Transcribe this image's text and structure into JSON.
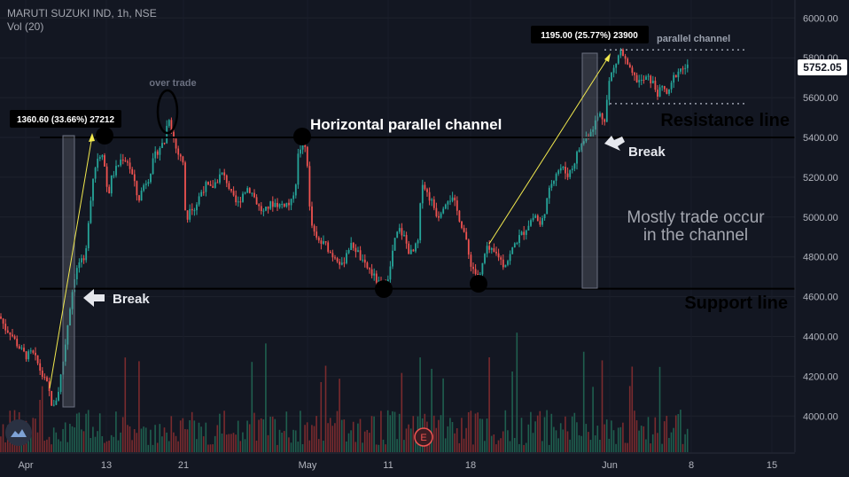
{
  "legend": {
    "symbol_line": "MARUTI SUZUKI IND, 1h, NSE",
    "volume_line": "Vol (20)"
  },
  "price_axis": {
    "ticks": [
      "6000.00",
      "5800.00",
      "5600.00",
      "5400.00",
      "5200.00",
      "5000.00",
      "4800.00",
      "4600.00",
      "4400.00",
      "4200.00",
      "4000.00"
    ],
    "current_price": "5752.05"
  },
  "time_axis": {
    "ticks": [
      "Apr",
      "13",
      "21",
      "May",
      "11",
      "18",
      "Jun",
      "8",
      "15"
    ]
  },
  "annotations": {
    "measure_1": "1360.60 (33.66%) 27212",
    "measure_2": "1195.00 (25.77%) 23900",
    "over_trade": "over trade",
    "horizontal_channel": "Horizontal parallel channel",
    "parallel_channel": "parallel channel",
    "resistance": "Resistance line",
    "support": "Support line",
    "break_1": "Break",
    "break_2": "Break",
    "mostly_line1": "Mostly trade occur",
    "mostly_line2": "in the channel",
    "earnings_marker": "E"
  },
  "colors": {
    "background": "#131722",
    "up": "#26a69a",
    "down": "#ef5350",
    "vol_up": "#1f5f4f",
    "vol_down": "#7a2b2e",
    "trend_arrow": "#f2e94e"
  },
  "chart_data": {
    "type": "candlestick",
    "title": "",
    "ylim": [
      3860,
      6080
    ],
    "support": 4640,
    "resistance": 5400,
    "channel_top": 5840,
    "channel_bottom": 5570,
    "path": [
      [
        0,
        4500
      ],
      [
        6,
        4440
      ],
      [
        12,
        4420
      ],
      [
        18,
        4370
      ],
      [
        24,
        4330
      ],
      [
        30,
        4300
      ],
      [
        36,
        4320
      ],
      [
        42,
        4270
      ],
      [
        48,
        4200
      ],
      [
        54,
        4150
      ],
      [
        60,
        4030
      ],
      [
        66,
        4130
      ],
      [
        72,
        4300
      ],
      [
        78,
        4520
      ],
      [
        84,
        4700
      ],
      [
        90,
        4780
      ],
      [
        96,
        4760
      ],
      [
        100,
        5000
      ],
      [
        105,
        5200
      ],
      [
        110,
        5300
      ],
      [
        116,
        5330
      ],
      [
        122,
        5100
      ],
      [
        126,
        5200
      ],
      [
        132,
        5250
      ],
      [
        138,
        5300
      ],
      [
        144,
        5280
      ],
      [
        150,
        5200
      ],
      [
        156,
        5080
      ],
      [
        162,
        5160
      ],
      [
        168,
        5200
      ],
      [
        174,
        5300
      ],
      [
        180,
        5350
      ],
      [
        186,
        5380
      ],
      [
        190,
        5520
      ],
      [
        194,
        5430
      ],
      [
        200,
        5320
      ],
      [
        206,
        5300
      ],
      [
        210,
        4950
      ],
      [
        214,
        5060
      ],
      [
        220,
        5040
      ],
      [
        226,
        5120
      ],
      [
        232,
        5160
      ],
      [
        238,
        5140
      ],
      [
        244,
        5180
      ],
      [
        250,
        5220
      ],
      [
        256,
        5180
      ],
      [
        262,
        5100
      ],
      [
        268,
        5060
      ],
      [
        274,
        5120
      ],
      [
        280,
        5150
      ],
      [
        286,
        5110
      ],
      [
        292,
        5050
      ],
      [
        298,
        5020
      ],
      [
        304,
        5060
      ],
      [
        310,
        5070
      ],
      [
        316,
        5060
      ],
      [
        322,
        5070
      ],
      [
        328,
        5060
      ],
      [
        334,
        5180
      ],
      [
        337,
        5340
      ],
      [
        342,
        5360
      ],
      [
        346,
        5340
      ],
      [
        350,
        4990
      ],
      [
        356,
        4890
      ],
      [
        362,
        4870
      ],
      [
        368,
        4860
      ],
      [
        374,
        4810
      ],
      [
        380,
        4800
      ],
      [
        386,
        4750
      ],
      [
        392,
        4840
      ],
      [
        398,
        4860
      ],
      [
        404,
        4820
      ],
      [
        410,
        4760
      ],
      [
        416,
        4740
      ],
      [
        422,
        4700
      ],
      [
        428,
        4660
      ],
      [
        434,
        4660
      ],
      [
        440,
        4730
      ],
      [
        444,
        4860
      ],
      [
        450,
        4940
      ],
      [
        456,
        4900
      ],
      [
        462,
        4820
      ],
      [
        466,
        4820
      ],
      [
        472,
        4880
      ],
      [
        476,
        5190
      ],
      [
        482,
        5120
      ],
      [
        488,
        5070
      ],
      [
        494,
        5000
      ],
      [
        500,
        5060
      ],
      [
        506,
        5100
      ],
      [
        512,
        5080
      ],
      [
        518,
        5000
      ],
      [
        524,
        4920
      ],
      [
        530,
        4780
      ],
      [
        536,
        4720
      ],
      [
        542,
        4700
      ],
      [
        546,
        4800
      ],
      [
        550,
        4840
      ],
      [
        556,
        4820
      ],
      [
        562,
        4810
      ],
      [
        568,
        4760
      ],
      [
        574,
        4790
      ],
      [
        580,
        4860
      ],
      [
        586,
        4900
      ],
      [
        592,
        4930
      ],
      [
        598,
        4980
      ],
      [
        604,
        5010
      ],
      [
        610,
        4950
      ],
      [
        616,
        5060
      ],
      [
        622,
        5170
      ],
      [
        628,
        5230
      ],
      [
        634,
        5250
      ],
      [
        640,
        5210
      ],
      [
        646,
        5250
      ],
      [
        652,
        5330
      ],
      [
        658,
        5380
      ],
      [
        664,
        5420
      ],
      [
        670,
        5460
      ],
      [
        676,
        5520
      ],
      [
        682,
        5490
      ],
      [
        688,
        5700
      ],
      [
        694,
        5760
      ],
      [
        700,
        5840
      ],
      [
        706,
        5780
      ],
      [
        712,
        5720
      ],
      [
        718,
        5690
      ],
      [
        724,
        5680
      ],
      [
        730,
        5700
      ],
      [
        736,
        5680
      ],
      [
        742,
        5620
      ],
      [
        748,
        5650
      ],
      [
        754,
        5610
      ],
      [
        760,
        5700
      ],
      [
        766,
        5740
      ],
      [
        772,
        5750
      ],
      [
        778,
        5752
      ]
    ]
  }
}
